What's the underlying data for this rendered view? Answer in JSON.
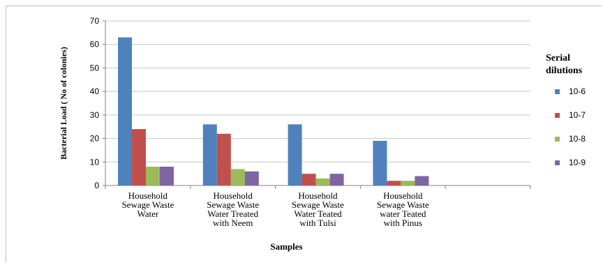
{
  "chart_data": {
    "type": "bar",
    "title": "",
    "xlabel": "Samples",
    "ylabel": "Bacterial Load ( No of colonies)",
    "ylim": [
      0,
      70
    ],
    "yticks": [
      "0",
      "10",
      "20",
      "30",
      "40",
      "50",
      "60",
      "70"
    ],
    "grid": true,
    "legend_title": "Serial dilutions",
    "legend_position": "right",
    "categories": [
      [
        "Household",
        "Sewage Waste",
        "Water"
      ],
      [
        "Household",
        "Sewage Waste",
        "Water Treated",
        "with Neem"
      ],
      [
        "Household",
        "Sewage Waste",
        "Water Teated",
        "with Tulsi"
      ],
      [
        "Household",
        "Sewage Waste",
        "water Teated",
        "with Pinus"
      ],
      [
        ""
      ]
    ],
    "series": [
      {
        "name": "10-6",
        "color": "#4f81bd",
        "values": [
          63,
          26,
          26,
          19,
          null
        ]
      },
      {
        "name": "10-7",
        "color": "#c0504d",
        "values": [
          24,
          22,
          5,
          2,
          null
        ]
      },
      {
        "name": "10-8",
        "color": "#9bbb59",
        "values": [
          8,
          7,
          3,
          2,
          null
        ]
      },
      {
        "name": "10-9",
        "color": "#8064a2",
        "values": [
          8,
          6,
          5,
          4,
          null
        ]
      }
    ]
  }
}
